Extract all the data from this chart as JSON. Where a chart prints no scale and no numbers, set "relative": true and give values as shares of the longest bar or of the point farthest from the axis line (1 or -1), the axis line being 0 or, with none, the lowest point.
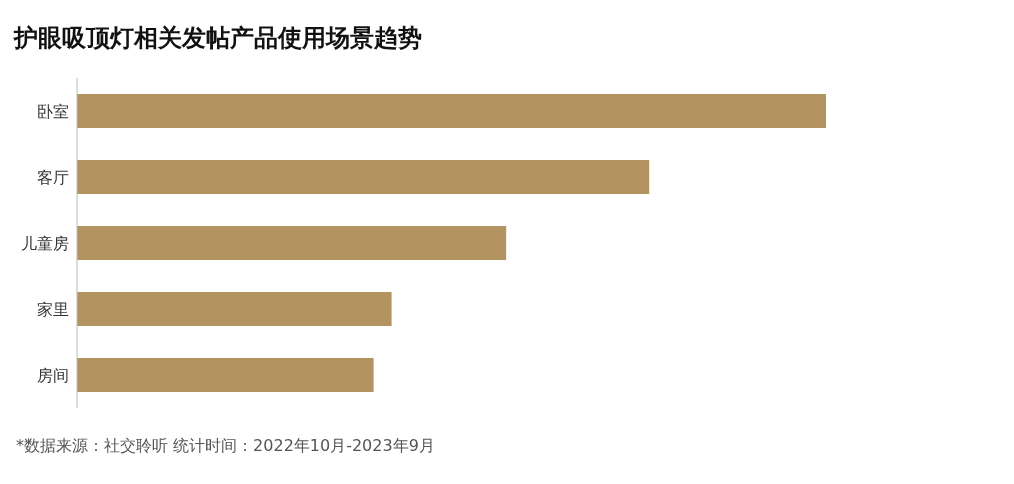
{
  "chart_data": {
    "type": "bar",
    "orientation": "horizontal",
    "relative": true,
    "title": "护眼吸顶灯相关发帖产品使用场景趋势",
    "categories": [
      "卧室",
      "客厅",
      "儿童房",
      "家里",
      "房间"
    ],
    "values": [
      1,
      0.764,
      0.573,
      0.42,
      0.396
    ],
    "color": "#b39460",
    "annotations": [
      "*数据来源：社交聆听   统计时间：2022年10月-2023年9月"
    ]
  }
}
